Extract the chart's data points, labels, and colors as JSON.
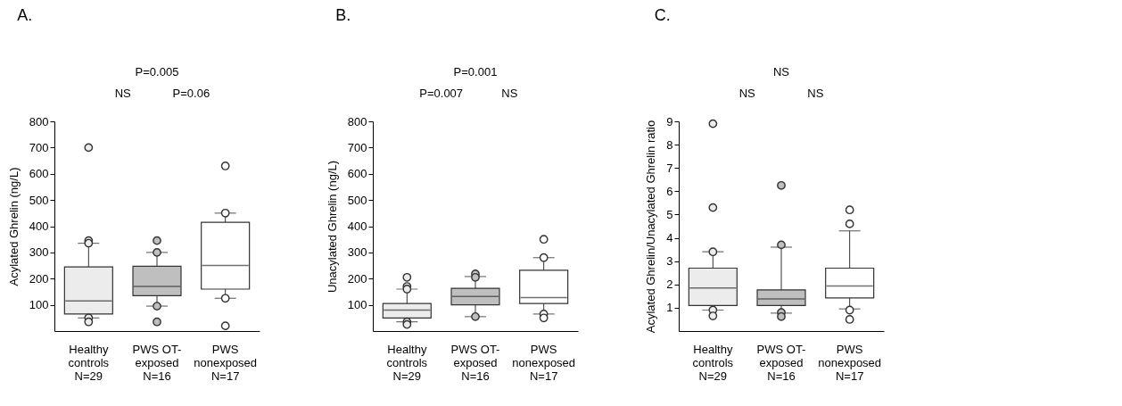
{
  "chart_data": [
    {
      "type": "box",
      "title": "A.",
      "ylabel": "Acylated Ghrelin (ng/L)",
      "categories": [
        "Healthy\ncontrols\nN=29",
        "PWS OT-\nexposed\nN=16",
        "PWS\nnonexposed\nN=17"
      ],
      "colors": [
        "#ececec",
        "#bfbfbf",
        "#ffffff"
      ],
      "ylim": [
        0,
        800
      ],
      "yticks": [
        100,
        200,
        300,
        400,
        500,
        600,
        700,
        800
      ],
      "grid": false,
      "boxes": [
        {
          "low": 50,
          "q1": 65,
          "median": 115,
          "q3": 245,
          "high": 335,
          "outliers": [
            700,
            345,
            335,
            50,
            35
          ]
        },
        {
          "low": 95,
          "q1": 135,
          "median": 170,
          "q3": 247,
          "high": 300,
          "outliers": [
            345,
            300,
            95,
            35
          ]
        },
        {
          "low": 125,
          "q1": 160,
          "median": 250,
          "q3": 415,
          "high": 450,
          "outliers": [
            630,
            450,
            125,
            20
          ]
        }
      ],
      "annotations": [
        "P=0.005",
        "NS",
        "P=0.06"
      ]
    },
    {
      "type": "box",
      "title": "B.",
      "ylabel": "Unacylated Ghrelin (ng/L)",
      "categories": [
        "Healthy\ncontrols\nN=29",
        "PWS OT-\nexposed\nN=16",
        "PWS\nnonexposed\nN=17"
      ],
      "colors": [
        "#ececec",
        "#bfbfbf",
        "#ffffff"
      ],
      "ylim": [
        0,
        800
      ],
      "yticks": [
        100,
        200,
        300,
        400,
        500,
        600,
        700,
        800
      ],
      "grid": false,
      "boxes": [
        {
          "low": 35,
          "q1": 50,
          "median": 80,
          "q3": 105,
          "high": 160,
          "outliers": [
            205,
            170,
            160,
            35,
            25
          ]
        },
        {
          "low": 55,
          "q1": 100,
          "median": 132,
          "q3": 163,
          "high": 208,
          "outliers": [
            218,
            205,
            55
          ]
        },
        {
          "low": 65,
          "q1": 105,
          "median": 128,
          "q3": 232,
          "high": 280,
          "outliers": [
            350,
            280,
            65,
            50
          ]
        }
      ],
      "annotations": [
        "P=0.001",
        "P=0.007",
        "NS"
      ]
    },
    {
      "type": "box",
      "title": "C.",
      "ylabel": "Acylated Ghrelin/Unacylated Ghrelin ratio",
      "categories": [
        "Healthy\ncontrols\nN=29",
        "PWS OT-\nexposed\nN=16",
        "PWS\nnonexposed\nN=17"
      ],
      "colors": [
        "#ececec",
        "#bfbfbf",
        "#ffffff"
      ],
      "ylim": [
        0,
        9
      ],
      "yticks": [
        1,
        2,
        3,
        4,
        5,
        6,
        7,
        8,
        9
      ],
      "grid": false,
      "boxes": [
        {
          "low": 0.9,
          "q1": 1.1,
          "median": 1.85,
          "q3": 2.7,
          "high": 3.4,
          "outliers": [
            8.9,
            5.3,
            3.4,
            0.9,
            0.65
          ]
        },
        {
          "low": 0.77,
          "q1": 1.1,
          "median": 1.38,
          "q3": 1.77,
          "high": 3.6,
          "outliers": [
            6.25,
            3.7,
            0.8,
            0.62
          ]
        },
        {
          "low": 0.95,
          "q1": 1.42,
          "median": 1.93,
          "q3": 2.7,
          "high": 4.3,
          "outliers": [
            5.2,
            4.6,
            0.9,
            0.5
          ]
        }
      ],
      "annotations": [
        "NS",
        "NS",
        "NS"
      ]
    }
  ]
}
